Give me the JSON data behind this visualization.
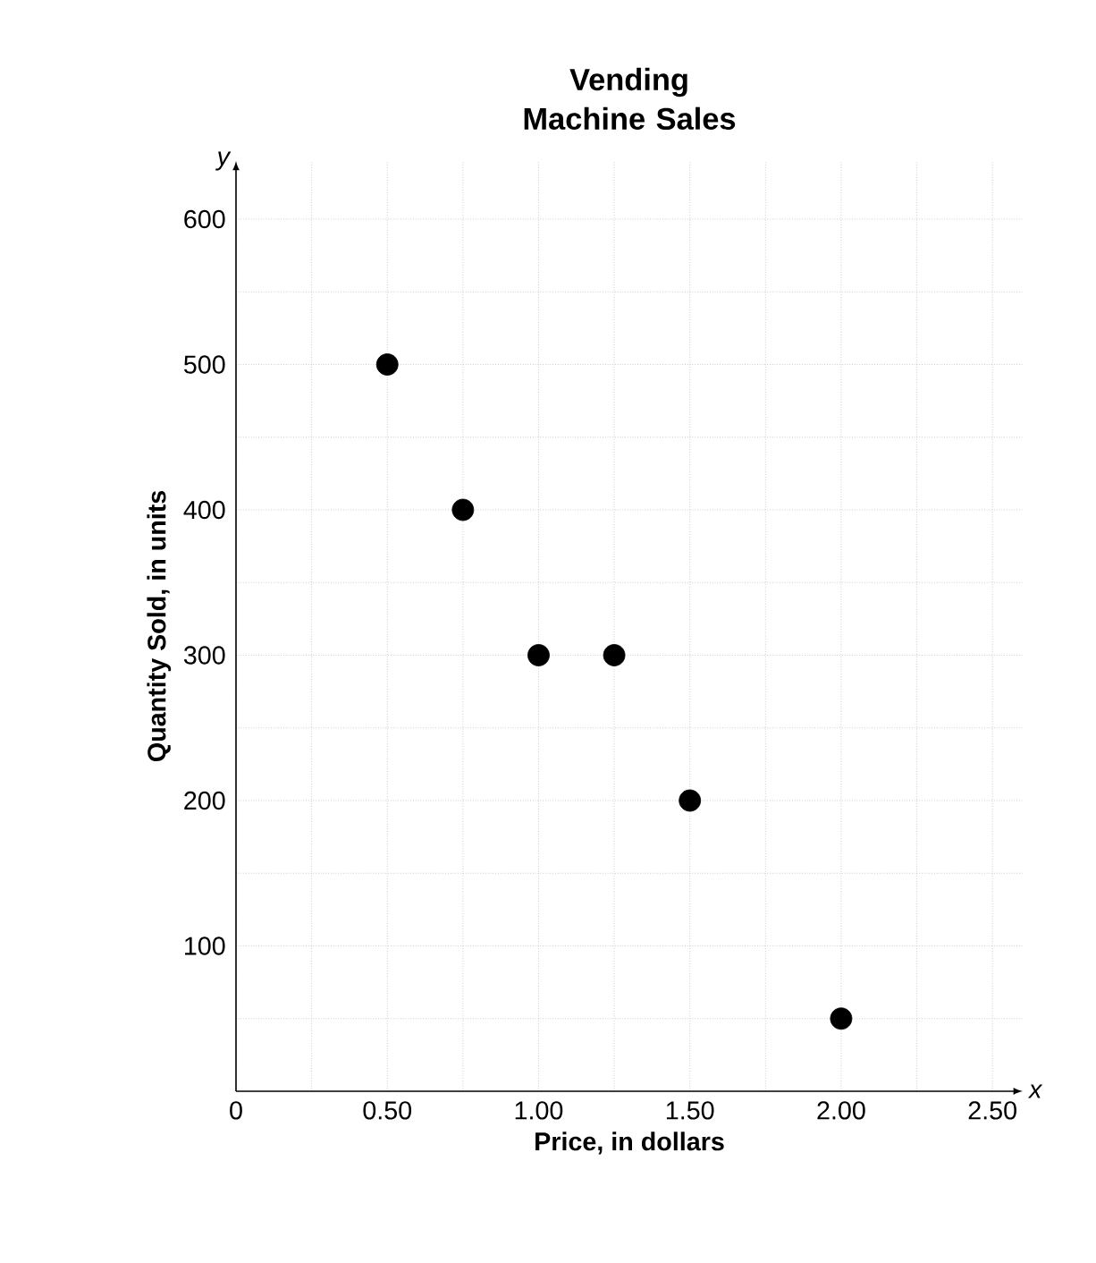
{
  "chart_data": {
    "type": "scatter",
    "title": "Vending Machine Sales",
    "xlabel": "Price, in dollars",
    "ylabel": "Quantity Sold, in units",
    "annotations": [
      "y",
      "x"
    ],
    "x": [
      0.5,
      0.75,
      1.0,
      1.25,
      1.5,
      2.0
    ],
    "values": [
      500,
      400,
      300,
      300,
      200,
      50
    ],
    "color": "#000000",
    "marker": "circle",
    "grid": true,
    "xlim": [
      0,
      2.6
    ],
    "ylim": [
      0,
      640
    ],
    "xticks": [
      0,
      {
        "value": 0.25,
        "label": null
      },
      {
        "value": 0.5,
        "label": "0.50"
      },
      {
        "value": 0.75,
        "label": null
      },
      {
        "value": 1,
        "label": "1.00"
      },
      {
        "value": 1.25,
        "label": null
      },
      {
        "value": 1.5,
        "label": "1.50"
      },
      {
        "value": 1.75,
        "label": null
      },
      {
        "value": 2,
        "label": "2.00"
      },
      {
        "value": 2.25,
        "label": null
      },
      {
        "value": 2.5,
        "label": "2.50"
      }
    ],
    "yticks": [
      {
        "value": 50,
        "label": null
      },
      100,
      {
        "value": 150,
        "label": null
      },
      200,
      {
        "value": 250,
        "label": null
      },
      300,
      {
        "value": 350,
        "label": null
      },
      400,
      {
        "value": 450,
        "label": null
      },
      500,
      {
        "value": 550,
        "label": null
      },
      600
    ]
  }
}
